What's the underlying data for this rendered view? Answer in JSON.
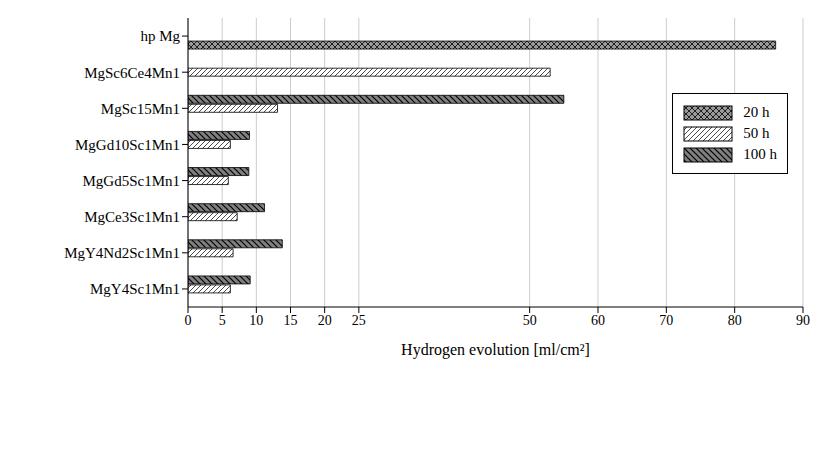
{
  "chart_data": {
    "type": "bar",
    "orientation": "horizontal",
    "x_label": "Hydrogen evolution  [ml/cm²]",
    "categories": [
      "hp Mg",
      "MgSc6Ce4Mn1",
      "MgSc15Mn1",
      "MgGd10Sc1Mn1",
      "MgGd5Sc1Mn1",
      "MgCe3Sc1Mn1",
      "MgY4Nd2Sc1Mn1",
      "MgY4Sc1Mn1"
    ],
    "series": [
      {
        "name": "20 h",
        "color": "#9a9a9a",
        "values": [
          86,
          null,
          null,
          null,
          null,
          null,
          null,
          null
        ]
      },
      {
        "name": "50 h",
        "color": "#ffffff",
        "values": [
          null,
          53,
          13.1,
          6.2,
          5.9,
          7.2,
          6.6,
          6.2
        ]
      },
      {
        "name": "100 h",
        "color": "#808080",
        "values": [
          null,
          null,
          55,
          9.0,
          8.9,
          11.2,
          13.8,
          9.1
        ]
      }
    ],
    "xlim": [
      0,
      90
    ],
    "xticks": [
      0,
      5,
      10,
      15,
      20,
      25,
      50,
      60,
      70,
      80,
      90
    ],
    "grid": true,
    "legend": "upper right"
  }
}
